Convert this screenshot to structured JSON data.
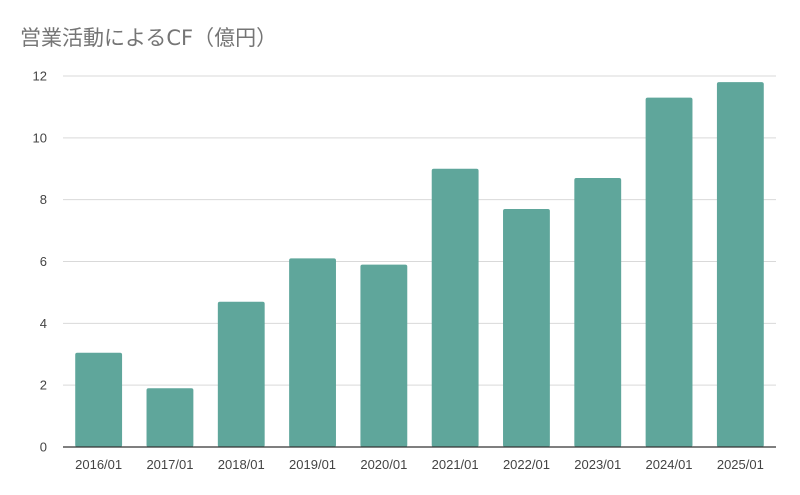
{
  "chart_data": {
    "type": "bar",
    "title": "営業活動によるCF（億円）",
    "xlabel": "",
    "ylabel": "",
    "categories": [
      "2016/01",
      "2017/01",
      "2018/01",
      "2019/01",
      "2020/01",
      "2021/01",
      "2022/01",
      "2023/01",
      "2024/01",
      "2025/01"
    ],
    "series": [
      {
        "values": [
          3.05,
          1.9,
          4.7,
          6.1,
          5.9,
          9.0,
          7.7,
          8.7,
          11.3,
          11.8
        ]
      }
    ],
    "ylim": [
      0,
      12
    ],
    "yticks": [
      0,
      2,
      4,
      6,
      8,
      10,
      12
    ],
    "grid": true,
    "legend": "none",
    "colors": {
      "bar": "#5fa69b",
      "grid": "#d9d9d9",
      "axis": "#333333"
    }
  }
}
